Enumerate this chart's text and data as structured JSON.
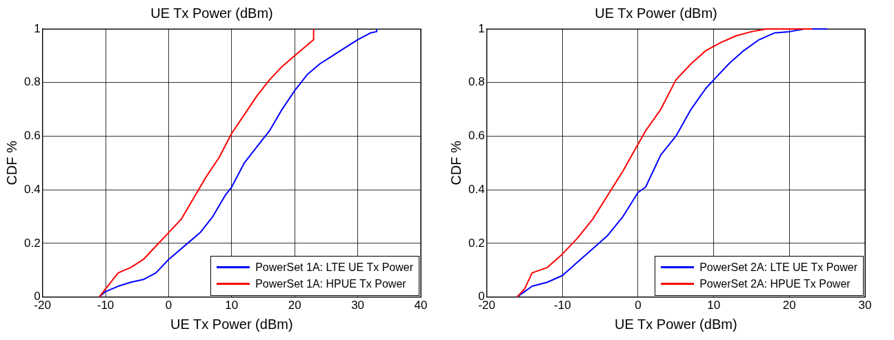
{
  "chart_data": [
    {
      "type": "line",
      "title": "UE Tx Power (dBm)",
      "xlabel": "UE Tx Power (dBm)",
      "ylabel": "CDF %",
      "xlim": [
        -20,
        40
      ],
      "xticks": [
        -20,
        -10,
        0,
        10,
        20,
        30,
        40
      ],
      "ylim": [
        0,
        1
      ],
      "yticks": [
        0,
        0.2,
        0.4,
        0.6,
        0.8,
        1
      ],
      "grid": true,
      "legend": "bottom right",
      "marker": "none",
      "line_style": "solid",
      "series": [
        {
          "name": "PowerSet 1A: LTE UE Tx Power",
          "color": "#0000ff",
          "x": [
            -11,
            -10,
            -8,
            -6,
            -4,
            -2,
            0,
            1,
            3,
            5,
            7,
            9,
            10,
            12,
            14,
            16,
            18,
            20,
            22,
            24,
            26,
            28,
            30,
            32,
            33,
            33
          ],
          "values": [
            0,
            0.02,
            0.04,
            0.055,
            0.065,
            0.09,
            0.14,
            0.16,
            0.2,
            0.24,
            0.3,
            0.38,
            0.41,
            0.5,
            0.56,
            0.62,
            0.7,
            0.77,
            0.83,
            0.87,
            0.9,
            0.93,
            0.96,
            0.985,
            0.99,
            1
          ]
        },
        {
          "name": "PowerSet 1A: HPUE Tx Power",
          "color": "#ff0000",
          "x": [
            -11,
            -10,
            -8,
            -6,
            -4,
            -2,
            0,
            2,
            4,
            6,
            8,
            10,
            12,
            14,
            16,
            18,
            20,
            22,
            23,
            23
          ],
          "values": [
            0,
            0.03,
            0.09,
            0.11,
            0.14,
            0.19,
            0.24,
            0.29,
            0.37,
            0.45,
            0.52,
            0.61,
            0.68,
            0.75,
            0.81,
            0.86,
            0.9,
            0.94,
            0.96,
            1
          ]
        }
      ]
    },
    {
      "type": "line",
      "title": "UE Tx Power (dBm)",
      "xlabel": "UE Tx Power (dBm)",
      "ylabel": "CDF %",
      "xlim": [
        -20,
        30
      ],
      "xticks": [
        -20,
        -10,
        0,
        10,
        20,
        30
      ],
      "ylim": [
        0,
        1
      ],
      "yticks": [
        0,
        0.2,
        0.4,
        0.6,
        0.8,
        1
      ],
      "grid": true,
      "legend": "bottom right",
      "marker": "none",
      "line_style": "solid",
      "series": [
        {
          "name": "PowerSet 2A: LTE UE Tx Power",
          "color": "#0000ff",
          "x": [
            -16,
            -15,
            -14,
            -12,
            -10,
            -8,
            -6,
            -4,
            -2,
            0,
            1,
            2,
            3,
            5,
            7,
            9,
            10,
            12,
            14,
            16,
            18,
            20,
            22,
            25
          ],
          "values": [
            0,
            0.02,
            0.04,
            0.055,
            0.08,
            0.13,
            0.18,
            0.23,
            0.3,
            0.39,
            0.41,
            0.47,
            0.53,
            0.6,
            0.7,
            0.78,
            0.81,
            0.87,
            0.92,
            0.96,
            0.985,
            0.99,
            1,
            1
          ]
        },
        {
          "name": "PowerSet 2A: HPUE Tx Power",
          "color": "#ff0000",
          "x": [
            -16,
            -15,
            -14,
            -12,
            -10,
            -8,
            -6,
            -4,
            -2,
            0,
            1,
            3,
            5,
            7,
            9,
            11,
            13,
            15,
            17,
            23
          ],
          "values": [
            0,
            0.03,
            0.09,
            0.11,
            0.16,
            0.22,
            0.29,
            0.38,
            0.47,
            0.57,
            0.62,
            0.7,
            0.81,
            0.87,
            0.92,
            0.95,
            0.975,
            0.99,
            1,
            1
          ]
        }
      ]
    }
  ]
}
